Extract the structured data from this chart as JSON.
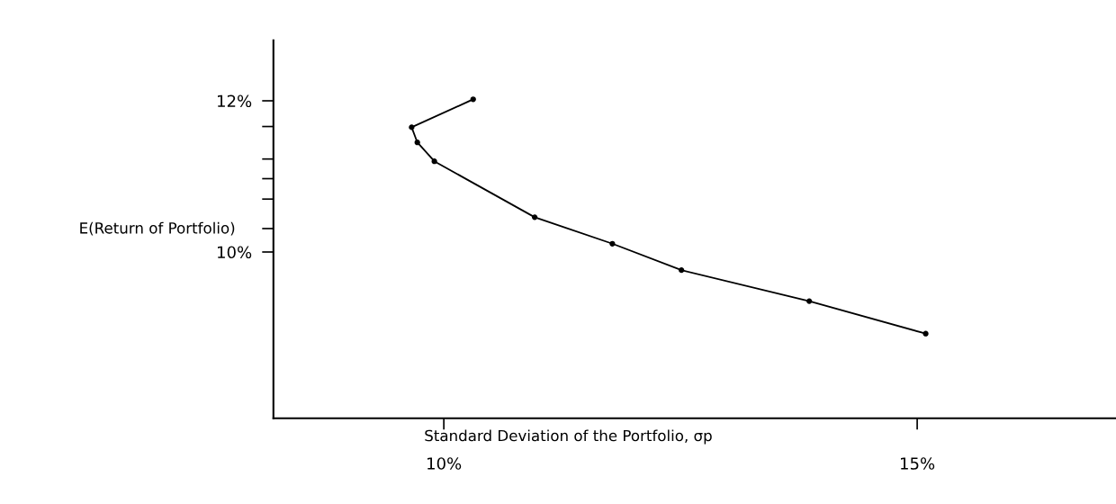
{
  "chart_data": {
    "type": "line",
    "xlabel": "Standard Deviation of the Portfolio, σp",
    "ylabel": "E(Return of Portfolio)",
    "x": [
      10.31,
      9.66,
      9.72,
      9.9,
      10.96,
      11.78,
      12.51,
      13.86,
      15.09
    ],
    "series": [
      {
        "color": "#000000",
        "values": [
          12.02,
          11.65,
          11.45,
          11.2,
          10.46,
          10.11,
          9.76,
          9.35,
          8.92
        ]
      }
    ],
    "xlim": [
      8.2,
      17.1
    ],
    "ylim": [
      7.8,
      12.8
    ],
    "xticks": [
      {
        "value": 10,
        "label": "10%"
      },
      {
        "value": 15,
        "label": "15%"
      }
    ],
    "yticks": [
      {
        "value": 10,
        "label": "10%"
      },
      {
        "value": 10.31,
        "label": null
      },
      {
        "value": 10.7,
        "label": null
      },
      {
        "value": 10.97,
        "label": null
      },
      {
        "value": 11.23,
        "label": null
      },
      {
        "value": 11.66,
        "label": null
      },
      {
        "value": 12,
        "label": "12%"
      }
    ],
    "marker": "circle",
    "line_style": "solid",
    "grid": false,
    "legend": false
  }
}
